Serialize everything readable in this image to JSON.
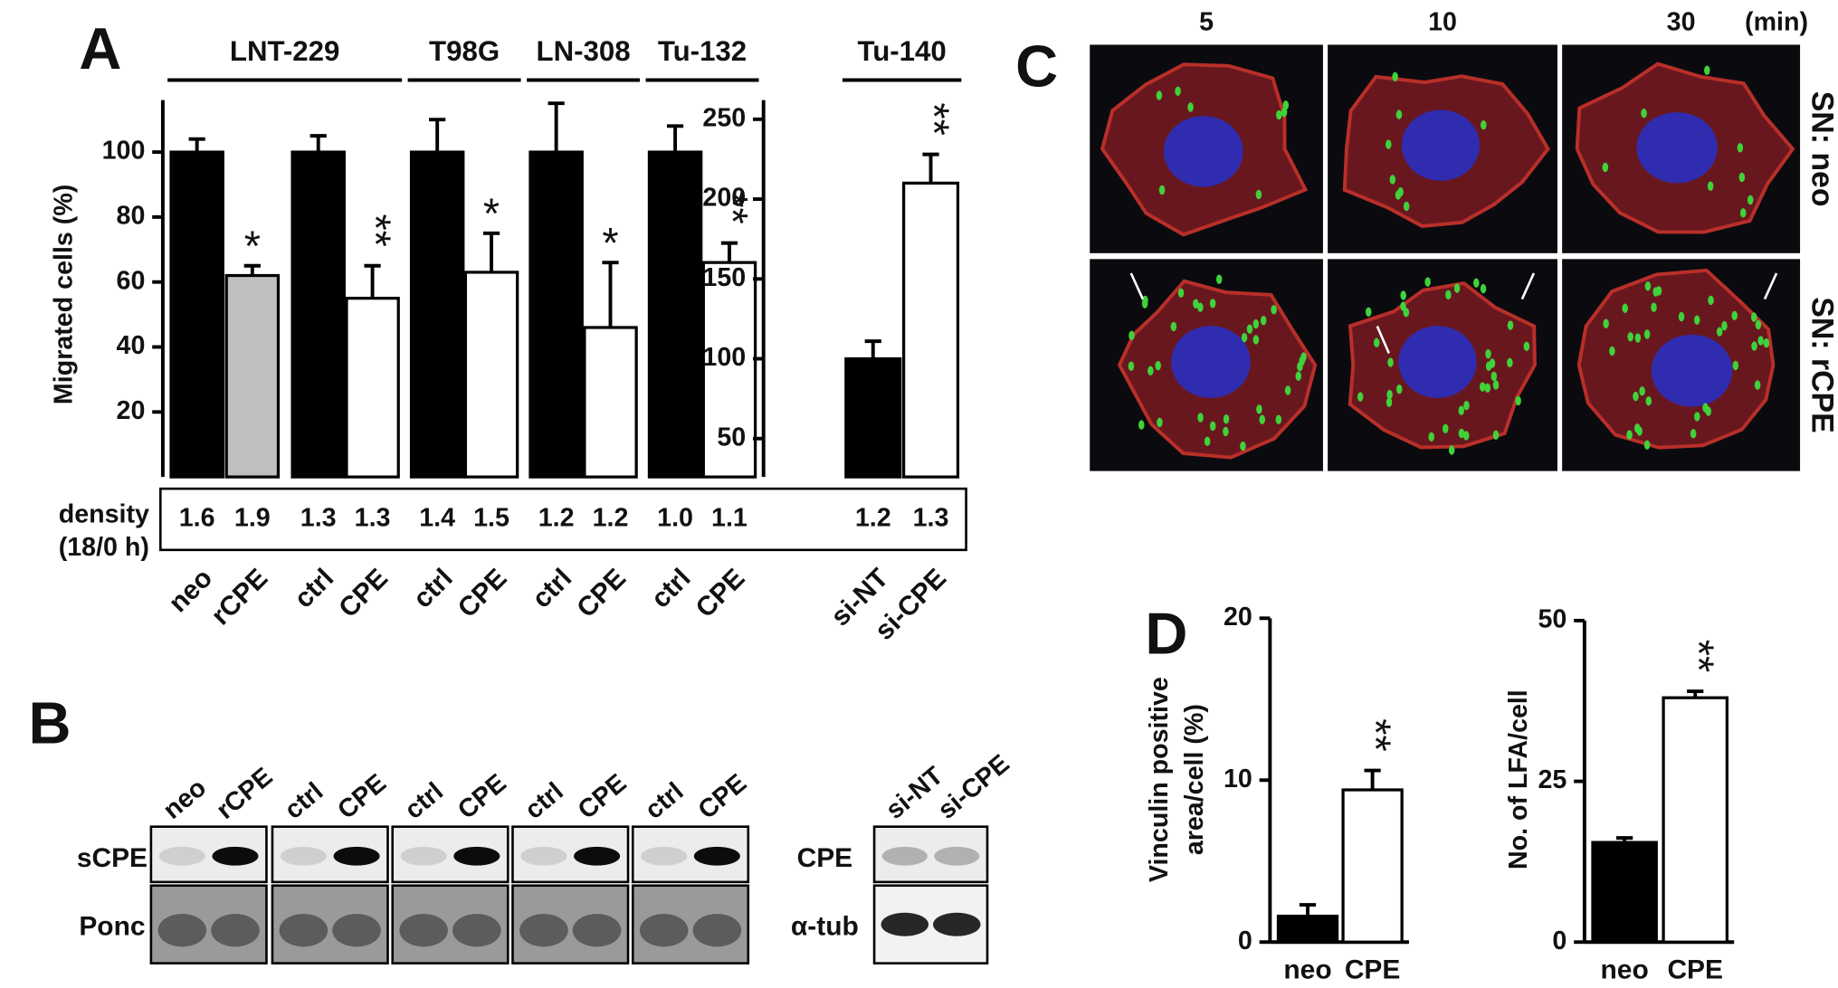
{
  "chart_data": [
    {
      "type": "bar",
      "panel_label": "A",
      "y_label": "Migrated cells (%)",
      "categories": [
        "neo",
        "rCPE",
        "ctrl",
        "CPE",
        "ctrl",
        "CPE",
        "ctrl",
        "CPE",
        "ctrl",
        "CPE"
      ],
      "values": [
        100,
        62,
        100,
        55,
        100,
        63,
        100,
        46,
        100,
        66
      ],
      "errors": [
        4,
        3,
        5,
        10,
        10,
        12,
        15,
        20,
        8,
        6
      ],
      "colors": [
        "#000000",
        "#c0c0c0",
        "#000000",
        "#ffffff",
        "#000000",
        "#ffffff",
        "#000000",
        "#ffffff",
        "#000000",
        "#ffffff"
      ],
      "significance": [
        null,
        "*",
        null,
        "**",
        null,
        "*",
        null,
        "*",
        null,
        "**"
      ],
      "groups": [
        {
          "label": "LNT-229",
          "first": 0,
          "last": 3
        },
        {
          "label": "T98G",
          "first": 4,
          "last": 5
        },
        {
          "label": "LN-308",
          "first": 6,
          "last": 7
        },
        {
          "label": "Tu-132",
          "first": 8,
          "last": 9
        }
      ],
      "density_label": [
        "density",
        "(18/0 h)"
      ],
      "density": [
        "1.6",
        "1.9",
        "1.3",
        "1.3",
        "1.4",
        "1.5",
        "1.2",
        "1.2",
        "1.0",
        "1.1"
      ],
      "ylim": [
        0,
        116
      ],
      "yticks": [
        20,
        40,
        60,
        80,
        100
      ]
    },
    {
      "type": "bar",
      "categories": [
        "si-NT",
        "si-CPE"
      ],
      "values": [
        100,
        210
      ],
      "errors": [
        11,
        18
      ],
      "colors": [
        "#000000",
        "#ffffff"
      ],
      "significance": [
        null,
        "**"
      ],
      "groups": [
        {
          "label": "Tu-140",
          "first": 0,
          "last": 1
        }
      ],
      "density": [
        "1.2",
        "1.3"
      ],
      "ylim": [
        26,
        262
      ],
      "yticks": [
        50,
        100,
        150,
        200,
        250
      ]
    },
    {
      "type": "bar",
      "panel_label": "D",
      "y_label": [
        "Vinculin positive",
        "area/cell  (%)"
      ],
      "categories": [
        "neo",
        "CPE"
      ],
      "values": [
        1.6,
        9.4
      ],
      "errors": [
        0.7,
        1.2
      ],
      "colors": [
        "#000000",
        "#ffffff"
      ],
      "significance": [
        null,
        "**"
      ],
      "ylim": [
        0,
        20
      ],
      "yticks": [
        0,
        10,
        20
      ]
    },
    {
      "type": "bar",
      "y_label": "No. of LFA/cell",
      "categories": [
        "neo",
        "CPE"
      ],
      "values": [
        15.5,
        38
      ],
      "errors": [
        0.7,
        1
      ],
      "colors": [
        "#000000",
        "#ffffff"
      ],
      "significance": [
        null,
        "**"
      ],
      "ylim": [
        0,
        50
      ],
      "yticks": [
        0,
        25,
        50
      ]
    }
  ],
  "panel_b": {
    "label": "B",
    "rows": [
      "sCPE",
      "Ponc"
    ],
    "lanes": [
      [
        "neo",
        "rCPE"
      ],
      [
        "ctrl",
        "CPE"
      ],
      [
        "ctrl",
        "CPE"
      ],
      [
        "ctrl",
        "CPE"
      ],
      [
        "ctrl",
        "CPE"
      ]
    ],
    "si_rows": [
      "CPE",
      "α-tub"
    ],
    "si_lanes": [
      "si-NT",
      "si-CPE"
    ]
  },
  "panel_c": {
    "label": "C",
    "times": [
      5,
      10,
      30
    ],
    "time_unit": "(min)",
    "rows": [
      "SN: neo",
      "SN: rCPE"
    ]
  }
}
